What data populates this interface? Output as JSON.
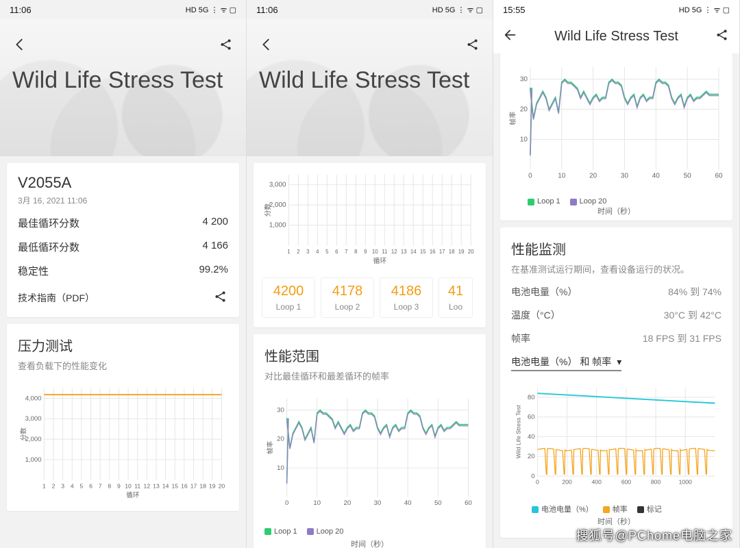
{
  "watermark": "搜狐号@PChome电脑之家",
  "screen1": {
    "time": "11:06",
    "status_icons": "HD 5G ⋮ ᯤ ▢",
    "hero_title": "Wild Life Stress Test",
    "device": "V2055A",
    "device_date": "3月 16, 2021 11:06",
    "rows": [
      {
        "k": "最佳循环分数",
        "v": "4 200"
      },
      {
        "k": "最低循环分数",
        "v": "4 166"
      },
      {
        "k": "稳定性",
        "v": "99.2%"
      }
    ],
    "tech_guide": "技术指南（PDF）",
    "stress_title": "压力测试",
    "stress_sub": "查看负载下的性能变化",
    "score_chart": {
      "type": "line",
      "ylabel": "分数",
      "xlabel": "循环",
      "yticks": [
        1000,
        2000,
        3000,
        4000
      ],
      "xticks": [
        1,
        2,
        3,
        4,
        5,
        6,
        7,
        8,
        9,
        10,
        11,
        12,
        13,
        14,
        15,
        16,
        17,
        18,
        19,
        20
      ],
      "ylim": [
        0,
        4500
      ],
      "line_color": "#f5a623",
      "grid_color": "#e5e5e5",
      "value": 4180
    }
  },
  "screen2": {
    "time": "11:06",
    "status_icons": "HD 5G ⋮ ᯤ ▢",
    "hero_title": "Wild Life Stress Test",
    "top_chart": {
      "ylabel": "分数",
      "xlabel": "循环",
      "yticks": [
        1000,
        2000,
        3000
      ],
      "xticks": [
        1,
        2,
        3,
        4,
        5,
        6,
        7,
        8,
        9,
        10,
        11,
        12,
        13,
        14,
        15,
        16,
        17,
        18,
        19,
        20
      ],
      "grid_color": "#e5e5e5"
    },
    "loops": [
      {
        "score": "4200",
        "label": "Loop 1"
      },
      {
        "score": "4178",
        "label": "Loop 2"
      },
      {
        "score": "4186",
        "label": "Loop 3"
      },
      {
        "score": "41",
        "label": "Loo"
      }
    ],
    "range_title": "性能范围",
    "range_sub": "对比最佳循环和最差循环的帧率",
    "fps_chart": {
      "type": "line",
      "ylabel": "帧率",
      "xlabel": "时间（秒）",
      "yticks": [
        10,
        20,
        30
      ],
      "xticks": [
        0,
        10,
        20,
        30,
        40,
        50,
        60
      ],
      "ylim": [
        0,
        34
      ],
      "xlim": [
        0,
        60
      ],
      "grid_color": "#e5e5e5",
      "series": [
        {
          "name": "Loop 1",
          "color": "#2ecc71"
        },
        {
          "name": "Loop 20",
          "color": "#8e7cc3"
        }
      ],
      "points": [
        [
          0,
          27
        ],
        [
          1,
          17
        ],
        [
          2,
          22
        ],
        [
          3,
          24
        ],
        [
          4,
          26
        ],
        [
          5,
          24
        ],
        [
          6,
          20
        ],
        [
          7,
          22
        ],
        [
          8,
          24
        ],
        [
          9,
          19
        ],
        [
          10,
          29
        ],
        [
          11,
          30
        ],
        [
          12,
          29
        ],
        [
          13,
          29
        ],
        [
          14,
          28
        ],
        [
          15,
          27
        ],
        [
          16,
          24
        ],
        [
          17,
          26
        ],
        [
          18,
          24
        ],
        [
          19,
          22
        ],
        [
          20,
          24
        ],
        [
          21,
          25
        ],
        [
          22,
          23
        ],
        [
          23,
          24
        ],
        [
          24,
          24
        ],
        [
          25,
          29
        ],
        [
          26,
          30
        ],
        [
          27,
          29
        ],
        [
          28,
          29
        ],
        [
          29,
          28
        ],
        [
          30,
          24
        ],
        [
          31,
          22
        ],
        [
          32,
          24
        ],
        [
          33,
          25
        ],
        [
          34,
          21
        ],
        [
          35,
          24
        ],
        [
          36,
          25
        ],
        [
          37,
          23
        ],
        [
          38,
          24
        ],
        [
          39,
          24
        ],
        [
          40,
          29
        ],
        [
          41,
          30
        ],
        [
          42,
          29
        ],
        [
          43,
          29
        ],
        [
          44,
          28
        ],
        [
          45,
          24
        ],
        [
          46,
          22
        ],
        [
          47,
          24
        ],
        [
          48,
          25
        ],
        [
          49,
          21
        ],
        [
          50,
          24
        ],
        [
          51,
          25
        ],
        [
          52,
          23
        ],
        [
          53,
          24
        ],
        [
          54,
          24
        ],
        [
          55,
          25
        ],
        [
          56,
          26
        ],
        [
          57,
          25
        ],
        [
          58,
          25
        ],
        [
          59,
          25
        ],
        [
          60,
          25
        ]
      ]
    }
  },
  "screen3": {
    "time": "15:55",
    "status_icons": "HD 5G ⋮ ᯤ ▢",
    "title": "Wild Life Stress Test",
    "top_chart": {
      "ylabel": "帧率",
      "xlabel": "时间（秒）",
      "yticks": [
        10,
        20,
        30
      ],
      "xticks": [
        0,
        10,
        20,
        30,
        40,
        50,
        60
      ],
      "ylim": [
        0,
        34
      ],
      "xlim": [
        0,
        60
      ],
      "grid_color": "#e5e5e5",
      "series": [
        {
          "name": "Loop 1",
          "color": "#2ecc71"
        },
        {
          "name": "Loop 20",
          "color": "#8e7cc3"
        }
      ]
    },
    "perf_title": "性能监测",
    "perf_sub": "在基准测试运行期间，查看设备运行的状况。",
    "perf_rows": [
      {
        "k": "电池电量（%）",
        "v": "84% 到 74%"
      },
      {
        "k": "温度（°C）",
        "v": "30°C 到 42°C"
      },
      {
        "k": "帧率",
        "v": "18 FPS 到 31 FPS"
      }
    ],
    "dropdown": "电池电量（%） 和 帧率",
    "bottom_chart": {
      "ylabel": "Wild Life Stress Test",
      "xlabel": "时间（秒）",
      "yticks": [
        0,
        20,
        40,
        60,
        80
      ],
      "xticks": [
        0,
        200,
        400,
        600,
        800,
        1000
      ],
      "ylim": [
        0,
        90
      ],
      "xlim": [
        0,
        1200
      ],
      "grid_color": "#e5e5e5",
      "battery_color": "#26c6da",
      "fps_color": "#f5a623",
      "marker_color": "#333333",
      "legend": [
        {
          "name": "电池电量（%）",
          "color": "#26c6da"
        },
        {
          "name": "帧率",
          "color": "#f5a623"
        },
        {
          "name": "标记",
          "color": "#333333"
        }
      ],
      "battery": [
        [
          0,
          84
        ],
        [
          1200,
          74
        ]
      ],
      "fps_base": 27,
      "fps_dips": [
        60,
        120,
        180,
        240,
        300,
        360,
        420,
        480,
        540,
        600,
        660,
        720,
        780,
        840,
        900,
        960,
        1020,
        1080,
        1140
      ]
    }
  }
}
